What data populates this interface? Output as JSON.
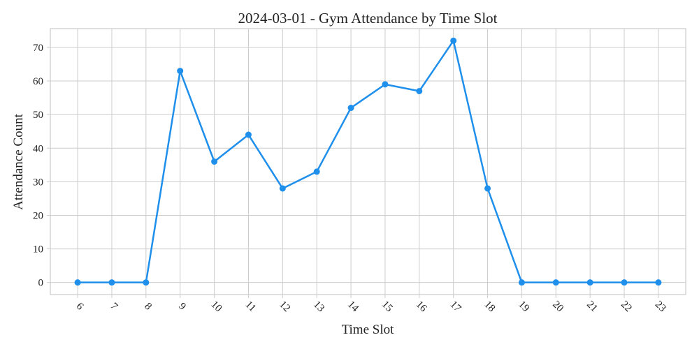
{
  "chart_data": {
    "type": "line",
    "title": "2024-03-01 - Gym Attendance by Time Slot",
    "xlabel": "Time Slot",
    "ylabel": "Attendance Count",
    "x": [
      6,
      7,
      8,
      9,
      10,
      11,
      12,
      13,
      14,
      15,
      16,
      17,
      18,
      19,
      20,
      21,
      22,
      23
    ],
    "series": [
      {
        "values": [
          0,
          0,
          0,
          63,
          36,
          44,
          28,
          33,
          52,
          59,
          57,
          72,
          28,
          0,
          0,
          0,
          0,
          0
        ],
        "color": "#1f8fec",
        "marker": "circle"
      }
    ],
    "xlim": [
      5.2,
      23.8
    ],
    "ylim": [
      -3.6,
      75.6
    ],
    "yticks": [
      0,
      10,
      20,
      30,
      40,
      50,
      60,
      70
    ],
    "xtick_rotation": 45,
    "grid": true,
    "legend": "none"
  }
}
